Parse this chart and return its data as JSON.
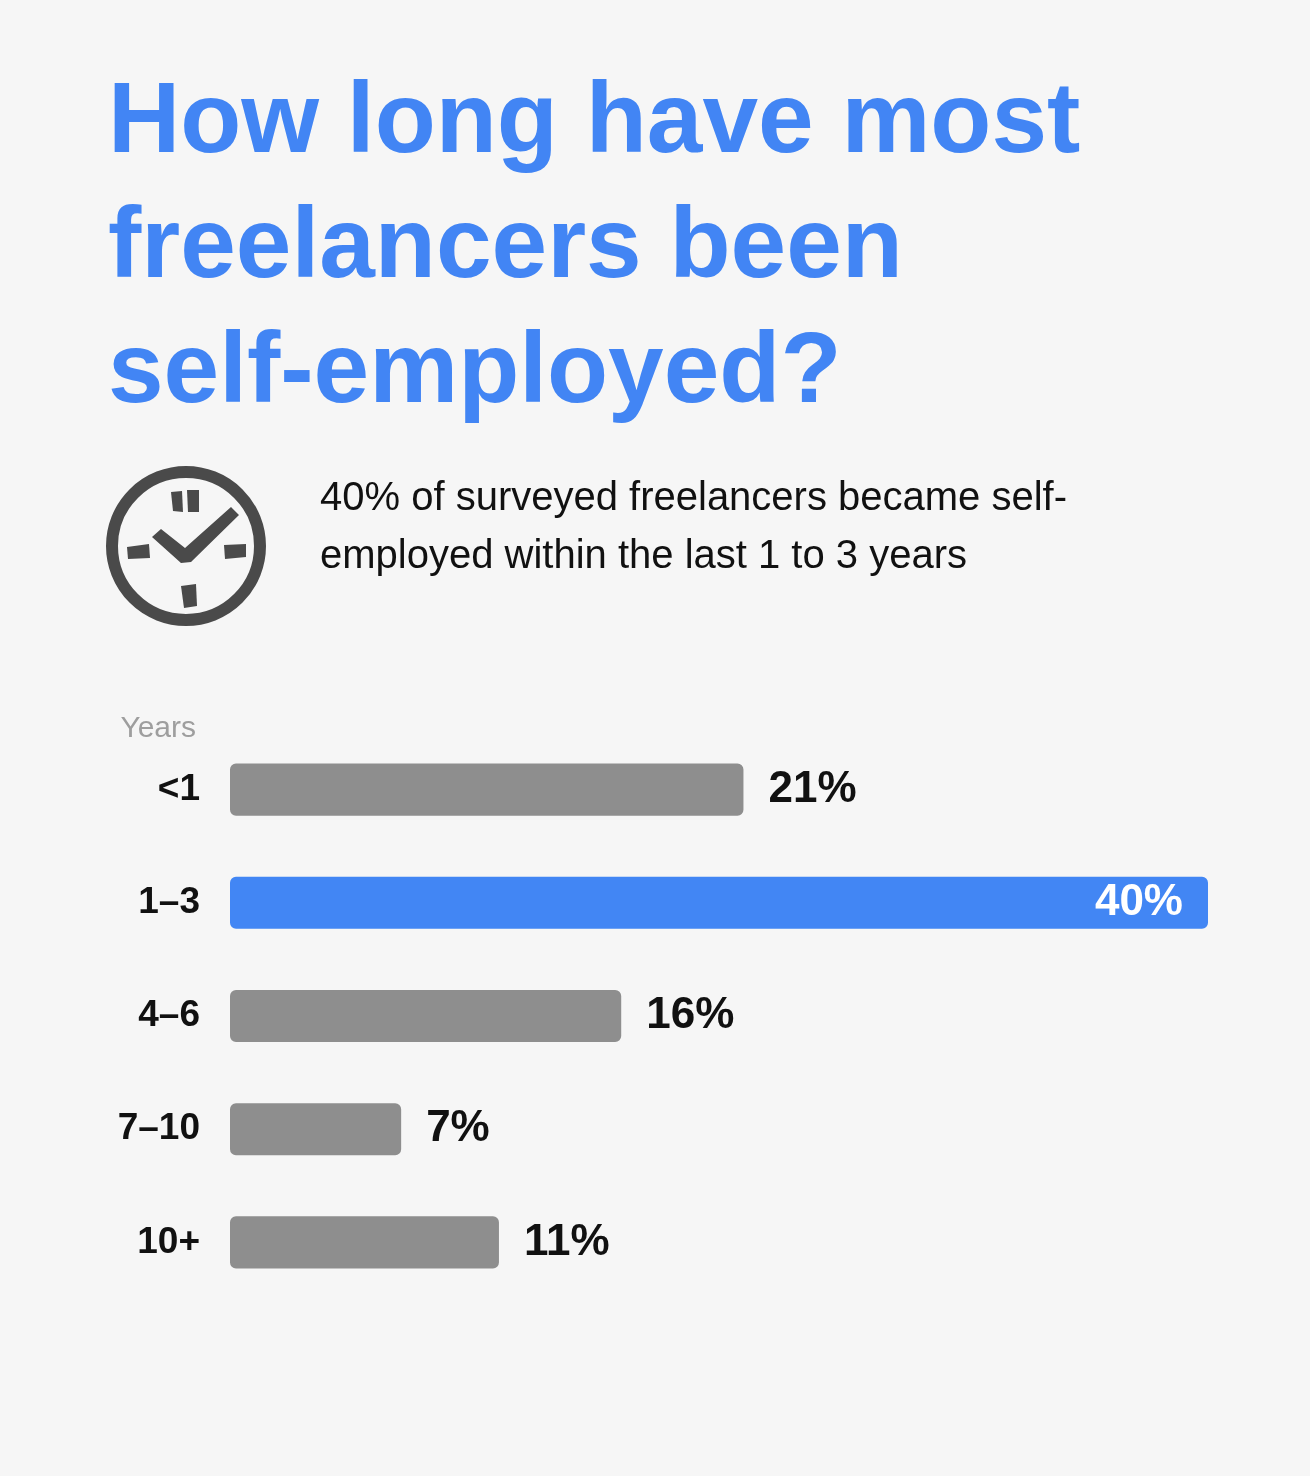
{
  "chart_data": {
    "type": "bar",
    "orientation": "horizontal",
    "title": "How long have most freelancers been self-employed?",
    "subtitle": "40% of surveyed freelancers became self-employed within the last 1 to 3 years",
    "ylabel": "Years",
    "categories": [
      "<1",
      "1–3",
      "4–6",
      "7–10",
      "10+"
    ],
    "values": [
      21,
      40,
      16,
      7,
      11
    ],
    "colors": [
      "#8e8e8e",
      "#4286f4",
      "#8e8e8e",
      "#8e8e8e",
      "#8e8e8e"
    ],
    "value_labels": [
      "21%",
      "40%",
      "16%",
      "7%",
      "11%"
    ],
    "tick_labels": "y"
  }
}
